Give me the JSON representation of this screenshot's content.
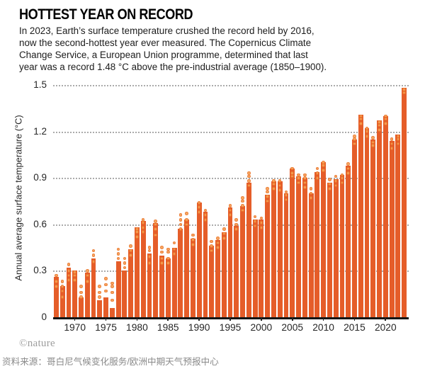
{
  "header": {
    "title": "HOTTEST YEAR ON RECORD",
    "subtitle_lines": [
      "In 2023, Earth’s surface temperature crushed the record held by 2016,",
      "now the second-hottest year ever measured. The Copernicus Climate",
      "Change Service, a European Union programme, determined that last",
      "year was a record 1.48 °C above the pre-industrial average (1850–1900)."
    ]
  },
  "footer": {
    "credit": "©nature",
    "source": "资料来源：哥白尼气候变化服务/欧洲中期天气预报中心"
  },
  "chart_data": {
    "type": "bar",
    "title": "HOTTEST YEAR ON RECORD",
    "xlabel": "",
    "ylabel": "Annual average surface temperature (°C)",
    "ylim": [
      0,
      1.55
    ],
    "grid": "horizontal dotted",
    "legend": "none",
    "record_anomaly_2023_c": 1.48,
    "bar_color": "#e55d29",
    "marker_color": "#f6a055",
    "yticks": [
      {
        "label": "0",
        "value": 0.0
      },
      {
        "label": "0.3",
        "value": 0.3
      },
      {
        "label": "0.6",
        "value": 0.6
      },
      {
        "label": "0.9",
        "value": 0.9
      },
      {
        "label": "1.2",
        "value": 1.2
      },
      {
        "label": "1.5",
        "value": 1.5
      }
    ],
    "xtick_years": [
      1970,
      1975,
      1980,
      1985,
      1990,
      1995,
      2000,
      2005,
      2010,
      2015,
      2020
    ],
    "start_year": 1967,
    "end_year": 2023,
    "values": [
      0.26,
      0.2,
      0.32,
      0.3,
      0.13,
      0.29,
      0.38,
      0.11,
      0.13,
      0.06,
      0.36,
      0.3,
      0.44,
      0.58,
      0.62,
      0.41,
      0.61,
      0.4,
      0.38,
      0.45,
      0.57,
      0.63,
      0.51,
      0.74,
      0.68,
      0.46,
      0.5,
      0.55,
      0.71,
      0.59,
      0.72,
      0.87,
      0.63,
      0.63,
      0.79,
      0.88,
      0.88,
      0.8,
      0.96,
      0.91,
      0.9,
      0.8,
      0.94,
      1.0,
      0.87,
      0.89,
      0.92,
      0.98,
      1.15,
      1.31,
      1.22,
      1.15,
      1.27,
      1.3,
      1.14,
      1.18,
      1.48
    ],
    "dot_offsets": [
      [
        -0.06,
        -0.03,
        0.01
      ],
      [
        -0.07,
        -0.03,
        0.0,
        0.03
      ],
      [
        -0.08,
        -0.05,
        -0.02,
        0.02
      ],
      [
        -0.06,
        -0.03,
        -0.01
      ],
      [
        0.0,
        0.03,
        0.07
      ],
      [
        -0.06,
        -0.02,
        0.01
      ],
      [
        -0.02,
        0.02,
        0.05
      ],
      [
        0.02,
        0.05,
        0.09
      ],
      [
        0.04,
        0.08,
        0.12
      ],
      [
        0.05,
        0.1,
        0.14,
        0.16
      ],
      [
        0.02,
        0.05,
        0.08
      ],
      [
        0.02,
        0.05,
        0.08
      ],
      [
        -0.04,
        -0.01,
        0.02
      ],
      [
        -0.06,
        -0.03,
        -0.01
      ],
      [
        -0.07,
        -0.04,
        -0.01,
        0.01
      ],
      [
        -0.06,
        -0.02,
        0.02,
        0.04
      ],
      [
        -0.08,
        -0.04,
        -0.01,
        0.01
      ],
      [
        -0.05,
        -0.02,
        0.02,
        0.05
      ],
      [
        -0.03,
        0.0,
        0.04,
        0.06
      ],
      [
        -0.04,
        -0.01,
        0.03
      ],
      [
        0.0,
        0.03,
        0.06,
        0.09
      ],
      [
        -0.03,
        0.0,
        0.04
      ],
      [
        -0.04,
        -0.01,
        0.02
      ],
      [
        -0.06,
        -0.03,
        0.0
      ],
      [
        -0.05,
        -0.02,
        0.01
      ],
      [
        -0.03,
        0.0,
        0.03
      ],
      [
        -0.05,
        -0.02,
        0.01
      ],
      [
        -0.04,
        -0.01,
        0.02
      ],
      [
        -0.05,
        -0.02,
        0.01
      ],
      [
        -0.02,
        0.01,
        0.04
      ],
      [
        -0.03,
        0.0,
        0.03,
        0.05
      ],
      [
        -0.02,
        0.01,
        0.04,
        0.06
      ],
      [
        -0.04,
        -0.01,
        0.02
      ],
      [
        -0.05,
        -0.02,
        0.01
      ],
      [
        -0.04,
        -0.01,
        0.02,
        0.04
      ],
      [
        -0.05,
        -0.02,
        0.0
      ],
      [
        -0.06,
        -0.03,
        0.0
      ],
      [
        -0.04,
        -0.01,
        0.01
      ],
      [
        -0.05,
        -0.03,
        0.0
      ],
      [
        -0.04,
        -0.01,
        0.01
      ],
      [
        -0.06,
        -0.03,
        0.0,
        0.02
      ],
      [
        -0.03,
        0.0,
        0.03
      ],
      [
        -0.04,
        -0.01,
        0.02
      ],
      [
        -0.05,
        -0.02,
        0.0
      ],
      [
        -0.04,
        -0.01,
        0.02
      ],
      [
        -0.04,
        -0.01,
        0.02
      ],
      [
        -0.05,
        -0.02,
        0.0
      ],
      [
        -0.05,
        -0.02,
        0.01
      ],
      [
        -0.03,
        0.0,
        0.02
      ],
      [
        -0.06,
        -0.03,
        -0.01
      ],
      [
        -0.05,
        -0.02,
        0.0
      ],
      [
        -0.04,
        -0.02,
        0.01
      ],
      [
        -0.06,
        -0.03,
        -0.01
      ],
      [
        -0.05,
        -0.02,
        0.0
      ],
      [
        -0.05,
        -0.02,
        0.01
      ],
      [
        -0.06,
        -0.03,
        -0.01
      ],
      [
        -0.03,
        -0.01
      ]
    ]
  }
}
